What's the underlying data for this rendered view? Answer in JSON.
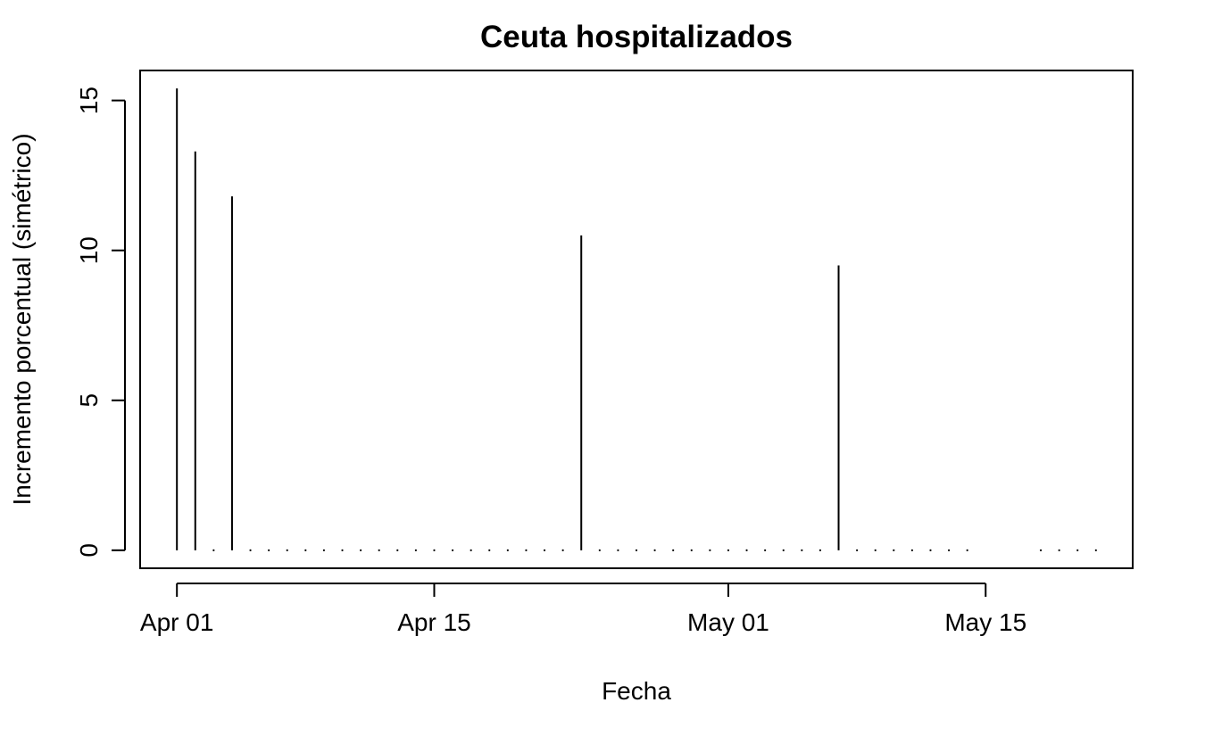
{
  "chart_data": {
    "type": "bar",
    "title": "Ceuta hospitalizados",
    "xlabel": "Fecha",
    "ylabel": "Incremento porcentual (simétrico)",
    "x_type": "date",
    "xlim": [
      "2020-03-30",
      "2020-05-23"
    ],
    "ylim": [
      -0.6,
      16.0
    ],
    "x_ticks": [
      {
        "date": "2020-04-01",
        "label": "Apr 01"
      },
      {
        "date": "2020-04-15",
        "label": "Apr 15"
      },
      {
        "date": "2020-05-01",
        "label": "May 01"
      },
      {
        "date": "2020-05-15",
        "label": "May 15"
      }
    ],
    "y_ticks": [
      0,
      5,
      10,
      15
    ],
    "grid": false,
    "legend": "none",
    "x": [
      "2020-04-01",
      "2020-04-02",
      "2020-04-03",
      "2020-04-04",
      "2020-04-05",
      "2020-04-06",
      "2020-04-07",
      "2020-04-08",
      "2020-04-09",
      "2020-04-10",
      "2020-04-11",
      "2020-04-12",
      "2020-04-13",
      "2020-04-14",
      "2020-04-15",
      "2020-04-16",
      "2020-04-17",
      "2020-04-18",
      "2020-04-19",
      "2020-04-20",
      "2020-04-21",
      "2020-04-22",
      "2020-04-23",
      "2020-04-24",
      "2020-04-25",
      "2020-04-26",
      "2020-04-27",
      "2020-04-28",
      "2020-04-29",
      "2020-04-30",
      "2020-05-01",
      "2020-05-02",
      "2020-05-03",
      "2020-05-04",
      "2020-05-05",
      "2020-05-06",
      "2020-05-07",
      "2020-05-08",
      "2020-05-09",
      "2020-05-10",
      "2020-05-11",
      "2020-05-12",
      "2020-05-13",
      "2020-05-14",
      "2020-05-18",
      "2020-05-19",
      "2020-05-20",
      "2020-05-21"
    ],
    "values": [
      15.4,
      13.3,
      0,
      11.8,
      0,
      0,
      0,
      0,
      0,
      0,
      0,
      0,
      0,
      0,
      0,
      0,
      0,
      0,
      0,
      0,
      0,
      0,
      10.5,
      0,
      0,
      0,
      0,
      0,
      0,
      0,
      0,
      0,
      0,
      0,
      0,
      0,
      9.5,
      0,
      0,
      0,
      0,
      0,
      0,
      0,
      0,
      0,
      0,
      0
    ],
    "line_color": "#000000"
  }
}
